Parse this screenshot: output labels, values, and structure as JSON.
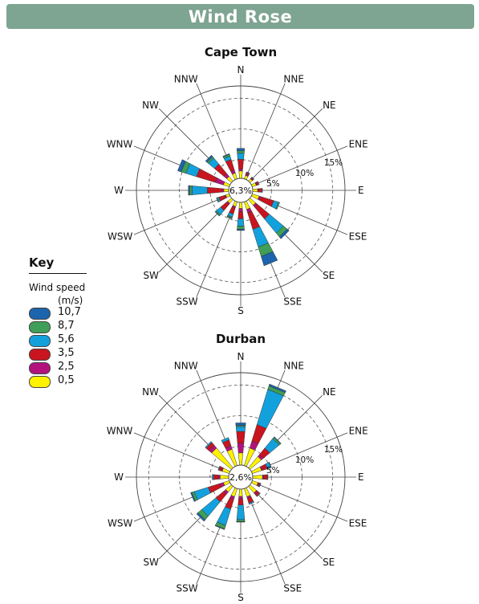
{
  "header": {
    "title": "Wind Rose",
    "color": "#7ea492"
  },
  "key": {
    "title": "Key",
    "subtitle": "Wind speed",
    "unit": "(m/s)",
    "items": [
      {
        "label": "10,7",
        "color": "#1c64ad"
      },
      {
        "label": "8,7",
        "color": "#3f9e57"
      },
      {
        "label": "5,6",
        "color": "#13a1dd"
      },
      {
        "label": "3,5",
        "color": "#c8151f"
      },
      {
        "label": "2,5",
        "color": "#b3127e"
      },
      {
        "label": "0,5",
        "color": "#fff200"
      }
    ]
  },
  "chart_data": [
    {
      "type": "wind-rose",
      "title": "Cape Town",
      "calm": "6,3%",
      "rings": [
        "5%",
        "10%",
        "15%"
      ],
      "ring_values": [
        5,
        10,
        15
      ],
      "radius_max": 17,
      "directions": [
        "N",
        "NNE",
        "NE",
        "ENE",
        "E",
        "ESE",
        "SE",
        "SSE",
        "S",
        "SSW",
        "SW",
        "WSW",
        "W",
        "WNW",
        "NW",
        "NNW"
      ],
      "speed_bins": [
        "0,5",
        "2,5",
        "3,5",
        "5,6",
        "8,7",
        "10,7"
      ],
      "frequencies": [
        [
          1.2,
          0.3,
          1.6,
          1.0,
          0.4,
          0.4
        ],
        [
          0.6,
          0.2,
          0.3,
          0.1,
          0,
          0
        ],
        [
          0.5,
          0.1,
          0.2,
          0.1,
          0,
          0
        ],
        [
          0.7,
          0.1,
          0.3,
          0.1,
          0,
          0
        ],
        [
          0.8,
          0.2,
          0.5,
          0.1,
          0,
          0
        ],
        [
          1.2,
          0.3,
          2.2,
          0.8,
          0.2,
          0
        ],
        [
          1.2,
          0.4,
          2.5,
          3.0,
          0.8,
          0.4
        ],
        [
          1.3,
          0.6,
          2.8,
          3.0,
          1.6,
          1.6
        ],
        [
          1.0,
          0.5,
          1.2,
          1.2,
          0.5,
          0.2
        ],
        [
          0.8,
          0.3,
          1.0,
          0.5,
          0.2,
          0.1
        ],
        [
          0.8,
          0.3,
          1.2,
          0.9,
          0.2,
          0.1
        ],
        [
          0.6,
          0.2,
          1.0,
          0.3,
          0.1,
          0
        ],
        [
          0.8,
          0.3,
          2.4,
          2.5,
          0.4,
          0.2
        ],
        [
          1.0,
          1.4,
          3.2,
          1.8,
          0.8,
          0.6
        ],
        [
          1.0,
          0.6,
          2.0,
          1.3,
          0.3,
          0.3
        ],
        [
          1.0,
          0.5,
          1.8,
          0.6,
          0.3,
          0.1
        ]
      ]
    },
    {
      "type": "wind-rose",
      "title": "Durban",
      "calm": "2,6%",
      "rings": [
        "5%",
        "10%",
        "15%"
      ],
      "ring_values": [
        5,
        10,
        15
      ],
      "radius_max": 17,
      "directions": [
        "N",
        "NNE",
        "NE",
        "ENE",
        "E",
        "ESE",
        "SE",
        "SSE",
        "S",
        "SSW",
        "SW",
        "WSW",
        "W",
        "WNW",
        "NW",
        "NNW"
      ],
      "speed_bins": [
        "0,5",
        "2,5",
        "3,5",
        "5,6",
        "8,7",
        "10,7"
      ],
      "frequencies": [
        [
          2.0,
          1.6,
          1.9,
          0.8,
          0.2,
          0.4
        ],
        [
          3.0,
          1.2,
          2.8,
          6.0,
          0.6,
          0.3
        ],
        [
          2.4,
          0.4,
          1.4,
          2.0,
          0.3,
          0.1
        ],
        [
          1.6,
          0.2,
          0.8,
          0.6,
          0.1,
          0
        ],
        [
          1.6,
          0.2,
          0.6,
          0.1,
          0,
          0
        ],
        [
          1.0,
          0.2,
          0.2,
          0.1,
          0,
          0
        ],
        [
          1.4,
          0.3,
          0.4,
          0.1,
          0,
          0
        ],
        [
          1.4,
          0.3,
          0.8,
          0.2,
          0,
          0
        ],
        [
          1.2,
          0.4,
          1.0,
          2.4,
          0.3,
          0.1
        ],
        [
          1.4,
          0.5,
          1.6,
          2.8,
          0.6,
          0.1
        ],
        [
          1.2,
          0.5,
          1.6,
          3.0,
          0.8,
          0.3
        ],
        [
          1.0,
          0.6,
          2.0,
          2.4,
          0.4,
          0.2
        ],
        [
          1.4,
          0.3,
          0.8,
          0.2,
          0,
          0
        ],
        [
          1.2,
          0.2,
          0.4,
          0.1,
          0,
          0
        ],
        [
          4.2,
          0.6,
          0.6,
          0.2,
          0,
          0
        ],
        [
          2.8,
          0.6,
          1.0,
          0.4,
          0,
          0
        ]
      ]
    }
  ]
}
